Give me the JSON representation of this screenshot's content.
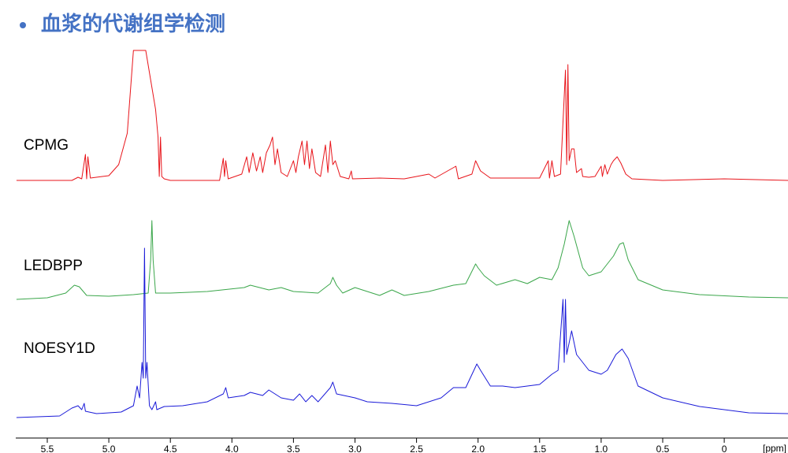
{
  "chart_data": {
    "type": "line",
    "title": "血浆的代谢组学检测",
    "xlabel": "[ppm]",
    "xlim": [
      5.756,
      -0.518
    ],
    "xticks": [
      5.5,
      {
        "value": 5,
        "label": "5.0"
      },
      4.5,
      {
        "value": 4,
        "label": "4.0"
      },
      3.5,
      {
        "value": 3,
        "label": "3.0"
      },
      2.5,
      {
        "value": 2,
        "label": "2.0"
      },
      1.5,
      {
        "value": 1,
        "label": "1.0"
      },
      0.5,
      0
    ],
    "series": [
      {
        "name": "CPMG",
        "color": "#e8141a",
        "x": [
          5.75,
          5.3,
          5.25,
          5.22,
          5.19,
          5.18,
          5.17,
          5.15,
          5.0,
          4.92,
          4.85,
          4.8,
          4.7,
          4.62,
          4.6,
          4.59,
          4.58,
          4.57,
          4.55,
          4.5,
          4.1,
          4.07,
          4.06,
          4.05,
          4.03,
          3.92,
          3.88,
          3.86,
          3.83,
          3.8,
          3.77,
          3.75,
          3.72,
          3.69,
          3.67,
          3.65,
          3.63,
          3.6,
          3.55,
          3.5,
          3.48,
          3.46,
          3.43,
          3.41,
          3.39,
          3.37,
          3.35,
          3.32,
          3.28,
          3.24,
          3.22,
          3.2,
          3.18,
          3.16,
          3.12,
          3.05,
          3.03,
          3.02,
          2.8,
          2.6,
          2.4,
          2.35,
          2.18,
          2.16,
          2.05,
          2.02,
          1.98,
          1.9,
          1.7,
          1.5,
          1.43,
          1.42,
          1.4,
          1.38,
          1.33,
          1.29,
          1.28,
          1.27,
          1.26,
          1.24,
          1.22,
          1.2,
          1.16,
          1.15,
          1.1,
          1.05,
          1.0,
          0.99,
          0.97,
          0.95,
          0.92,
          0.9,
          0.87,
          0.84,
          0.8,
          0.75,
          0.5,
          0,
          -0.52
        ],
        "values": [
          0,
          0,
          4,
          2,
          33,
          2,
          30,
          3,
          6,
          20,
          60,
          165,
          165,
          90,
          55,
          5,
          55,
          5,
          2,
          0,
          0,
          28,
          5,
          25,
          2,
          8,
          30,
          10,
          35,
          12,
          30,
          10,
          35,
          45,
          55,
          20,
          40,
          10,
          5,
          25,
          10,
          30,
          50,
          20,
          50,
          15,
          40,
          10,
          5,
          45,
          10,
          50,
          20,
          25,
          5,
          2,
          12,
          2,
          3,
          2,
          8,
          3,
          18,
          2,
          8,
          25,
          12,
          3,
          3,
          3,
          25,
          3,
          25,
          5,
          8,
          140,
          20,
          147,
          25,
          40,
          40,
          10,
          15,
          5,
          4,
          5,
          18,
          5,
          20,
          8,
          20,
          25,
          30,
          22,
          8,
          2,
          0,
          2,
          0
        ]
      },
      {
        "name": "LEDBPP",
        "color": "#3aa64a",
        "x": [
          5.75,
          5.5,
          5.35,
          5.28,
          5.24,
          5.18,
          5.0,
          4.8,
          4.68,
          4.66,
          4.65,
          4.64,
          4.62,
          4.5,
          4.2,
          3.9,
          3.85,
          3.7,
          3.6,
          3.5,
          3.3,
          3.2,
          3.18,
          3.15,
          3.1,
          3.0,
          2.9,
          2.8,
          2.7,
          2.6,
          2.4,
          2.2,
          2.1,
          2.02,
          2.0,
          1.95,
          1.85,
          1.7,
          1.6,
          1.5,
          1.4,
          1.35,
          1.3,
          1.26,
          1.22,
          1.15,
          1.1,
          1.0,
          0.9,
          0.85,
          0.82,
          0.78,
          0.7,
          0.5,
          0.2,
          -0.2,
          -0.52
        ],
        "values": [
          0,
          2,
          8,
          18,
          16,
          5,
          4,
          6,
          8,
          50,
          100,
          50,
          8,
          8,
          10,
          15,
          18,
          12,
          15,
          10,
          8,
          20,
          28,
          18,
          8,
          15,
          10,
          5,
          12,
          5,
          10,
          18,
          20,
          45,
          40,
          30,
          18,
          25,
          20,
          28,
          25,
          40,
          70,
          100,
          80,
          40,
          30,
          35,
          55,
          70,
          72,
          50,
          25,
          12,
          6,
          3,
          2
        ]
      },
      {
        "name": "NOESY1D",
        "color": "#1a1ad8",
        "x": [
          5.75,
          5.4,
          5.3,
          5.25,
          5.22,
          5.2,
          5.19,
          5.1,
          4.9,
          4.8,
          4.77,
          4.75,
          4.73,
          4.72,
          4.71,
          4.7,
          4.69,
          4.67,
          4.65,
          4.62,
          4.61,
          4.55,
          4.4,
          4.2,
          4.07,
          4.05,
          4.03,
          3.9,
          3.85,
          3.75,
          3.7,
          3.6,
          3.5,
          3.45,
          3.4,
          3.35,
          3.3,
          3.2,
          3.18,
          3.15,
          3.0,
          2.9,
          2.7,
          2.5,
          2.3,
          2.2,
          2.1,
          2.01,
          1.98,
          1.9,
          1.8,
          1.7,
          1.6,
          1.5,
          1.4,
          1.35,
          1.31,
          1.3,
          1.29,
          1.28,
          1.24,
          1.2,
          1.1,
          1.0,
          0.95,
          0.88,
          0.83,
          0.78,
          0.7,
          0.5,
          0.2,
          -0.2,
          -0.52
        ],
        "values": [
          0,
          2,
          12,
          15,
          10,
          18,
          8,
          5,
          7,
          15,
          40,
          25,
          70,
          50,
          215,
          50,
          70,
          15,
          10,
          20,
          10,
          14,
          15,
          20,
          30,
          38,
          25,
          28,
          32,
          28,
          35,
          25,
          22,
          30,
          20,
          28,
          20,
          38,
          45,
          30,
          25,
          20,
          18,
          15,
          25,
          38,
          38,
          68,
          60,
          40,
          40,
          38,
          40,
          42,
          55,
          60,
          150,
          70,
          150,
          80,
          110,
          80,
          60,
          55,
          60,
          80,
          87,
          75,
          40,
          25,
          14,
          6,
          5
        ]
      }
    ]
  }
}
